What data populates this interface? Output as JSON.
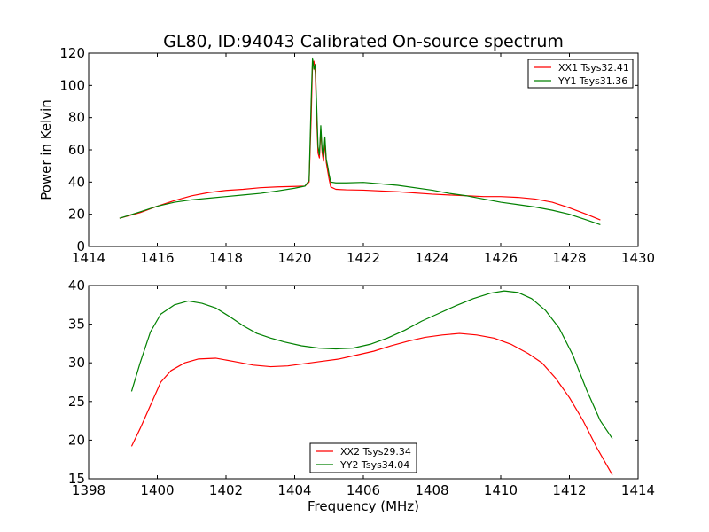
{
  "chart_data": [
    {
      "type": "line",
      "title": "GL80, ID:94043 Calibrated On-source spectrum",
      "xlabel": "",
      "ylabel": "Power in Kelvin",
      "xlim": [
        1414,
        1430
      ],
      "ylim": [
        0,
        120
      ],
      "xticks": [
        "1414",
        "1416",
        "1418",
        "1420",
        "1422",
        "1424",
        "1426",
        "1428",
        "1430"
      ],
      "yticks": [
        "0",
        "20",
        "40",
        "60",
        "80",
        "100",
        "120"
      ],
      "legend_loc": "upper right",
      "series": [
        {
          "name": "XX1 Tsys32.41",
          "color": "#ff0000",
          "points": [
            [
              1414.9,
              17.5
            ],
            [
              1415.5,
              21
            ],
            [
              1416,
              25
            ],
            [
              1416.5,
              28.5
            ],
            [
              1417,
              31.5
            ],
            [
              1417.5,
              33.5
            ],
            [
              1418,
              34.8
            ],
            [
              1418.5,
              35.5
            ],
            [
              1419,
              36.5
            ],
            [
              1419.5,
              37
            ],
            [
              1420,
              37.3
            ],
            [
              1420.3,
              37.5
            ],
            [
              1420.42,
              40
            ],
            [
              1420.48,
              80
            ],
            [
              1420.52,
              113
            ],
            [
              1420.56,
              115
            ],
            [
              1420.6,
              108
            ],
            [
              1420.64,
              80
            ],
            [
              1420.68,
              58
            ],
            [
              1420.72,
              55
            ],
            [
              1420.76,
              72
            ],
            [
              1420.8,
              58
            ],
            [
              1420.84,
              53
            ],
            [
              1420.88,
              65
            ],
            [
              1420.92,
              52
            ],
            [
              1420.96,
              47
            ],
            [
              1421,
              42
            ],
            [
              1421.05,
              37
            ],
            [
              1421.2,
              35.5
            ],
            [
              1421.5,
              35.2
            ],
            [
              1422,
              35
            ],
            [
              1423,
              34
            ],
            [
              1424,
              32.5
            ],
            [
              1425,
              31.5
            ],
            [
              1425.5,
              31
            ],
            [
              1426,
              31
            ],
            [
              1426.5,
              30.5
            ],
            [
              1427,
              29.5
            ],
            [
              1427.5,
              27.5
            ],
            [
              1428,
              24
            ],
            [
              1428.5,
              20
            ],
            [
              1428.9,
              16.5
            ]
          ]
        },
        {
          "name": "YY1 Tsys31.36",
          "color": "#008000",
          "points": [
            [
              1414.9,
              17.5
            ],
            [
              1415.5,
              21.5
            ],
            [
              1416,
              25
            ],
            [
              1416.5,
              27.5
            ],
            [
              1417,
              29
            ],
            [
              1417.5,
              30
            ],
            [
              1418,
              31
            ],
            [
              1418.5,
              32
            ],
            [
              1419,
              33
            ],
            [
              1419.5,
              34.5
            ],
            [
              1420,
              36.2
            ],
            [
              1420.3,
              37.5
            ],
            [
              1420.42,
              41
            ],
            [
              1420.48,
              90
            ],
            [
              1420.52,
              117
            ],
            [
              1420.56,
              110
            ],
            [
              1420.6,
              113
            ],
            [
              1420.64,
              88
            ],
            [
              1420.68,
              62
            ],
            [
              1420.72,
              57
            ],
            [
              1420.76,
              75
            ],
            [
              1420.8,
              60
            ],
            [
              1420.84,
              56
            ],
            [
              1420.88,
              68
            ],
            [
              1420.92,
              54
            ],
            [
              1420.96,
              50
            ],
            [
              1421,
              45
            ],
            [
              1421.05,
              40
            ],
            [
              1421.2,
              39.5
            ],
            [
              1421.5,
              39.5
            ],
            [
              1422,
              39.8
            ],
            [
              1423,
              38
            ],
            [
              1424,
              35
            ],
            [
              1424.5,
              33
            ],
            [
              1425,
              31.5
            ],
            [
              1425.5,
              29.5
            ],
            [
              1426,
              27.5
            ],
            [
              1426.5,
              26
            ],
            [
              1427,
              24.5
            ],
            [
              1427.5,
              22.5
            ],
            [
              1428,
              20
            ],
            [
              1428.5,
              16.5
            ],
            [
              1428.9,
              13.5
            ]
          ]
        }
      ]
    },
    {
      "type": "line",
      "title": "",
      "xlabel": "Frequency (MHz)",
      "ylabel": "",
      "xlim": [
        1398,
        1414
      ],
      "ylim": [
        15,
        40
      ],
      "xticks": [
        "1398",
        "1400",
        "1402",
        "1404",
        "1406",
        "1408",
        "1410",
        "1412",
        "1414"
      ],
      "yticks": [
        "15",
        "20",
        "25",
        "30",
        "35",
        "40"
      ],
      "legend_loc": "lower center",
      "series": [
        {
          "name": "XX2 Tsys29.34",
          "color": "#ff0000",
          "points": [
            [
              1399.25,
              19.2
            ],
            [
              1399.5,
              21.5
            ],
            [
              1399.8,
              24.5
            ],
            [
              1400.1,
              27.5
            ],
            [
              1400.4,
              29
            ],
            [
              1400.8,
              30
            ],
            [
              1401.2,
              30.5
            ],
            [
              1401.7,
              30.6
            ],
            [
              1402.2,
              30.2
            ],
            [
              1402.8,
              29.7
            ],
            [
              1403.3,
              29.5
            ],
            [
              1403.8,
              29.6
            ],
            [
              1404.3,
              29.9
            ],
            [
              1404.8,
              30.2
            ],
            [
              1405.3,
              30.5
            ],
            [
              1405.8,
              31
            ],
            [
              1406.3,
              31.5
            ],
            [
              1406.8,
              32.2
            ],
            [
              1407.3,
              32.8
            ],
            [
              1407.8,
              33.3
            ],
            [
              1408.3,
              33.6
            ],
            [
              1408.8,
              33.8
            ],
            [
              1409.3,
              33.6
            ],
            [
              1409.8,
              33.2
            ],
            [
              1410.3,
              32.4
            ],
            [
              1410.8,
              31.2
            ],
            [
              1411.2,
              30
            ],
            [
              1411.6,
              28
            ],
            [
              1412,
              25.5
            ],
            [
              1412.4,
              22.5
            ],
            [
              1412.8,
              19
            ],
            [
              1413.25,
              15.5
            ]
          ]
        },
        {
          "name": "YY2 Tsys34.04",
          "color": "#008000",
          "points": [
            [
              1399.25,
              26.3
            ],
            [
              1399.5,
              30
            ],
            [
              1399.8,
              34
            ],
            [
              1400.1,
              36.3
            ],
            [
              1400.5,
              37.5
            ],
            [
              1400.9,
              38
            ],
            [
              1401.3,
              37.7
            ],
            [
              1401.7,
              37.1
            ],
            [
              1402.1,
              36
            ],
            [
              1402.5,
              34.8
            ],
            [
              1402.9,
              33.8
            ],
            [
              1403.3,
              33.2
            ],
            [
              1403.7,
              32.7
            ],
            [
              1404.2,
              32.2
            ],
            [
              1404.7,
              31.9
            ],
            [
              1405.2,
              31.8
            ],
            [
              1405.7,
              31.9
            ],
            [
              1406.2,
              32.4
            ],
            [
              1406.7,
              33.2
            ],
            [
              1407.2,
              34.2
            ],
            [
              1407.7,
              35.4
            ],
            [
              1408.2,
              36.4
            ],
            [
              1408.7,
              37.4
            ],
            [
              1409.2,
              38.3
            ],
            [
              1409.7,
              39
            ],
            [
              1410.1,
              39.3
            ],
            [
              1410.5,
              39.1
            ],
            [
              1410.9,
              38.3
            ],
            [
              1411.3,
              36.8
            ],
            [
              1411.7,
              34.5
            ],
            [
              1412.1,
              31
            ],
            [
              1412.5,
              26.5
            ],
            [
              1412.9,
              22.5
            ],
            [
              1413.25,
              20.2
            ]
          ]
        }
      ]
    }
  ]
}
